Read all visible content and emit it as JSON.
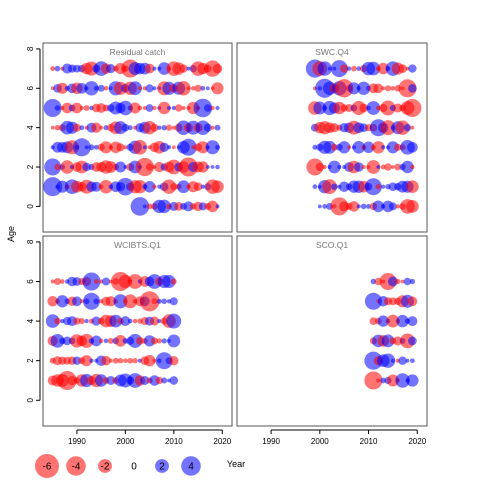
{
  "chart_data": {
    "type": "scatter",
    "subtype": "bubble residual plot",
    "xlabel": "Year",
    "ylabel": "Age",
    "xlim": [
      1983,
      2022
    ],
    "ylim": [
      -1.3,
      8.3
    ],
    "x_ticks": [
      1990,
      2000,
      2010,
      2020
    ],
    "y_ticks": [
      0,
      2,
      4,
      6,
      8
    ],
    "colors": {
      "positive": "#0000ff",
      "negative": "#ff0000",
      "bubble_opacity": 0.55
    },
    "legend": {
      "placement": "bottom-left",
      "values": [
        -6,
        -4,
        -2,
        0,
        2,
        4
      ],
      "labels": [
        "-6",
        "-4",
        "-2",
        "0",
        "2",
        "4"
      ]
    },
    "panels": [
      {
        "title": "Residual catch",
        "years": [
          1985,
          2019
        ],
        "ages": [
          {
            "age": 0,
            "from": 2003,
            "to": 2019
          },
          {
            "age": 1,
            "from": 1985,
            "to": 2019
          },
          {
            "age": 2,
            "from": 1985,
            "to": 2019
          },
          {
            "age": 3,
            "from": 1985,
            "to": 2019
          },
          {
            "age": 4,
            "from": 1985,
            "to": 2019
          },
          {
            "age": 5,
            "from": 1985,
            "to": 2019
          },
          {
            "age": 6,
            "from": 1985,
            "to": 2019
          },
          {
            "age": 7,
            "from": 1985,
            "to": 2019
          }
        ],
        "highlights": [
          {
            "age": 0,
            "year": 2003,
            "value": 3.6
          },
          {
            "age": 1,
            "year": 1985,
            "value": 3.8
          },
          {
            "age": 1,
            "year": 2000,
            "value": 3.2
          },
          {
            "age": 2,
            "year": 1985,
            "value": 3.0
          },
          {
            "age": 2,
            "year": 2004,
            "value": -3.5
          },
          {
            "age": 2,
            "year": 2013,
            "value": -3.8
          },
          {
            "age": 3,
            "year": 1991,
            "value": 3.4
          },
          {
            "age": 3,
            "year": 2013,
            "value": 3.0
          },
          {
            "age": 5,
            "year": 1985,
            "value": 3.4
          },
          {
            "age": 5,
            "year": 2016,
            "value": 3.6
          },
          {
            "age": 7,
            "year": 2001,
            "value": -3.4
          },
          {
            "age": 7,
            "year": 2018,
            "value": -2.8
          }
        ]
      },
      {
        "title": "SWC.Q4",
        "years": [
          1999,
          2019
        ],
        "ages": [
          {
            "age": 0,
            "from": 2000,
            "to": 2019
          },
          {
            "age": 1,
            "from": 1999,
            "to": 2019
          },
          {
            "age": 2,
            "from": 1999,
            "to": 2019
          },
          {
            "age": 3,
            "from": 1999,
            "to": 2019
          },
          {
            "age": 4,
            "from": 1999,
            "to": 2019
          },
          {
            "age": 5,
            "from": 1999,
            "to": 2019
          },
          {
            "age": 6,
            "from": 1999,
            "to": 2019
          },
          {
            "age": 7,
            "from": 1999,
            "to": 2019
          }
        ],
        "highlights": [
          {
            "age": 7,
            "year": 1999,
            "value": 3.4
          },
          {
            "age": 7,
            "year": 2004,
            "value": 3.0
          },
          {
            "age": 6,
            "year": 2001,
            "value": 3.8
          },
          {
            "age": 6,
            "year": 2005,
            "value": -3.5
          },
          {
            "age": 6,
            "year": 2018,
            "value": -3.4
          },
          {
            "age": 5,
            "year": 2019,
            "value": -3.4
          },
          {
            "age": 0,
            "year": 2004,
            "value": -3.4
          },
          {
            "age": 2,
            "year": 1999,
            "value": -3.0
          },
          {
            "age": 4,
            "year": 2012,
            "value": 3.0
          },
          {
            "age": 1,
            "year": 2011,
            "value": 3.0
          }
        ]
      },
      {
        "title": "WCIBTS.Q1",
        "years": [
          1985,
          2010
        ],
        "ages": [
          {
            "age": 1,
            "from": 1985,
            "to": 2010
          },
          {
            "age": 2,
            "from": 1985,
            "to": 2010
          },
          {
            "age": 3,
            "from": 1985,
            "to": 2010
          },
          {
            "age": 4,
            "from": 1985,
            "to": 2010
          },
          {
            "age": 5,
            "from": 1985,
            "to": 2010
          },
          {
            "age": 6,
            "from": 1985,
            "to": 2010
          }
        ],
        "highlights": [
          {
            "age": 1,
            "year": 1988,
            "value": -3.8
          },
          {
            "age": 6,
            "year": 1999,
            "value": -3.8
          },
          {
            "age": 5,
            "year": 2005,
            "value": -4.2
          },
          {
            "age": 6,
            "year": 1993,
            "value": 3.4
          },
          {
            "age": 5,
            "year": 1993,
            "value": 3.0
          },
          {
            "age": 2,
            "year": 2008,
            "value": 3.0
          }
        ]
      },
      {
        "title": "SCO.Q1",
        "years": [
          2011,
          2019
        ],
        "ages": [
          {
            "age": 1,
            "from": 2011,
            "to": 2019
          },
          {
            "age": 2,
            "from": 2011,
            "to": 2019
          },
          {
            "age": 3,
            "from": 2011,
            "to": 2019
          },
          {
            "age": 4,
            "from": 2011,
            "to": 2019
          },
          {
            "age": 5,
            "from": 2011,
            "to": 2019
          },
          {
            "age": 6,
            "from": 2011,
            "to": 2019
          }
        ],
        "highlights": [
          {
            "age": 1,
            "year": 2011,
            "value": -3.4
          },
          {
            "age": 6,
            "year": 2014,
            "value": -3.0
          },
          {
            "age": 5,
            "year": 2011,
            "value": 3.0
          },
          {
            "age": 2,
            "year": 2011,
            "value": 3.4
          }
        ]
      }
    ]
  }
}
